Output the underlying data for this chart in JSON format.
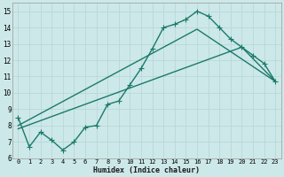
{
  "xlabel": "Humidex (Indice chaleur)",
  "background_color": "#cde8e8",
  "grid_color": "#b8d8d8",
  "line_color": "#1a7a6a",
  "xlim": [
    -0.5,
    23.5
  ],
  "ylim": [
    6,
    15.5
  ],
  "yticks": [
    6,
    7,
    8,
    9,
    10,
    11,
    12,
    13,
    14,
    15
  ],
  "xticks": [
    0,
    1,
    2,
    3,
    4,
    5,
    6,
    7,
    8,
    9,
    10,
    11,
    12,
    13,
    14,
    15,
    16,
    17,
    18,
    19,
    20,
    21,
    22,
    23
  ],
  "curve1_x": [
    0,
    1,
    2,
    3,
    4,
    5,
    6,
    7,
    8,
    9,
    10,
    11,
    12,
    13,
    14,
    15,
    16,
    17,
    18,
    19,
    20,
    21,
    22,
    23
  ],
  "curve1_y": [
    8.5,
    6.7,
    7.6,
    7.1,
    6.5,
    7.0,
    7.9,
    8.0,
    9.3,
    9.5,
    10.5,
    11.5,
    12.7,
    14.0,
    14.2,
    14.5,
    15.0,
    14.7,
    14.0,
    13.3,
    12.8,
    12.3,
    11.8,
    10.7
  ],
  "line1_x": [
    0,
    16,
    23
  ],
  "line1_y": [
    8.0,
    13.9,
    10.7
  ],
  "line2_x": [
    0,
    20,
    23
  ],
  "line2_y": [
    7.8,
    12.8,
    10.7
  ],
  "marker_size": 2.5,
  "line_width": 1.0
}
